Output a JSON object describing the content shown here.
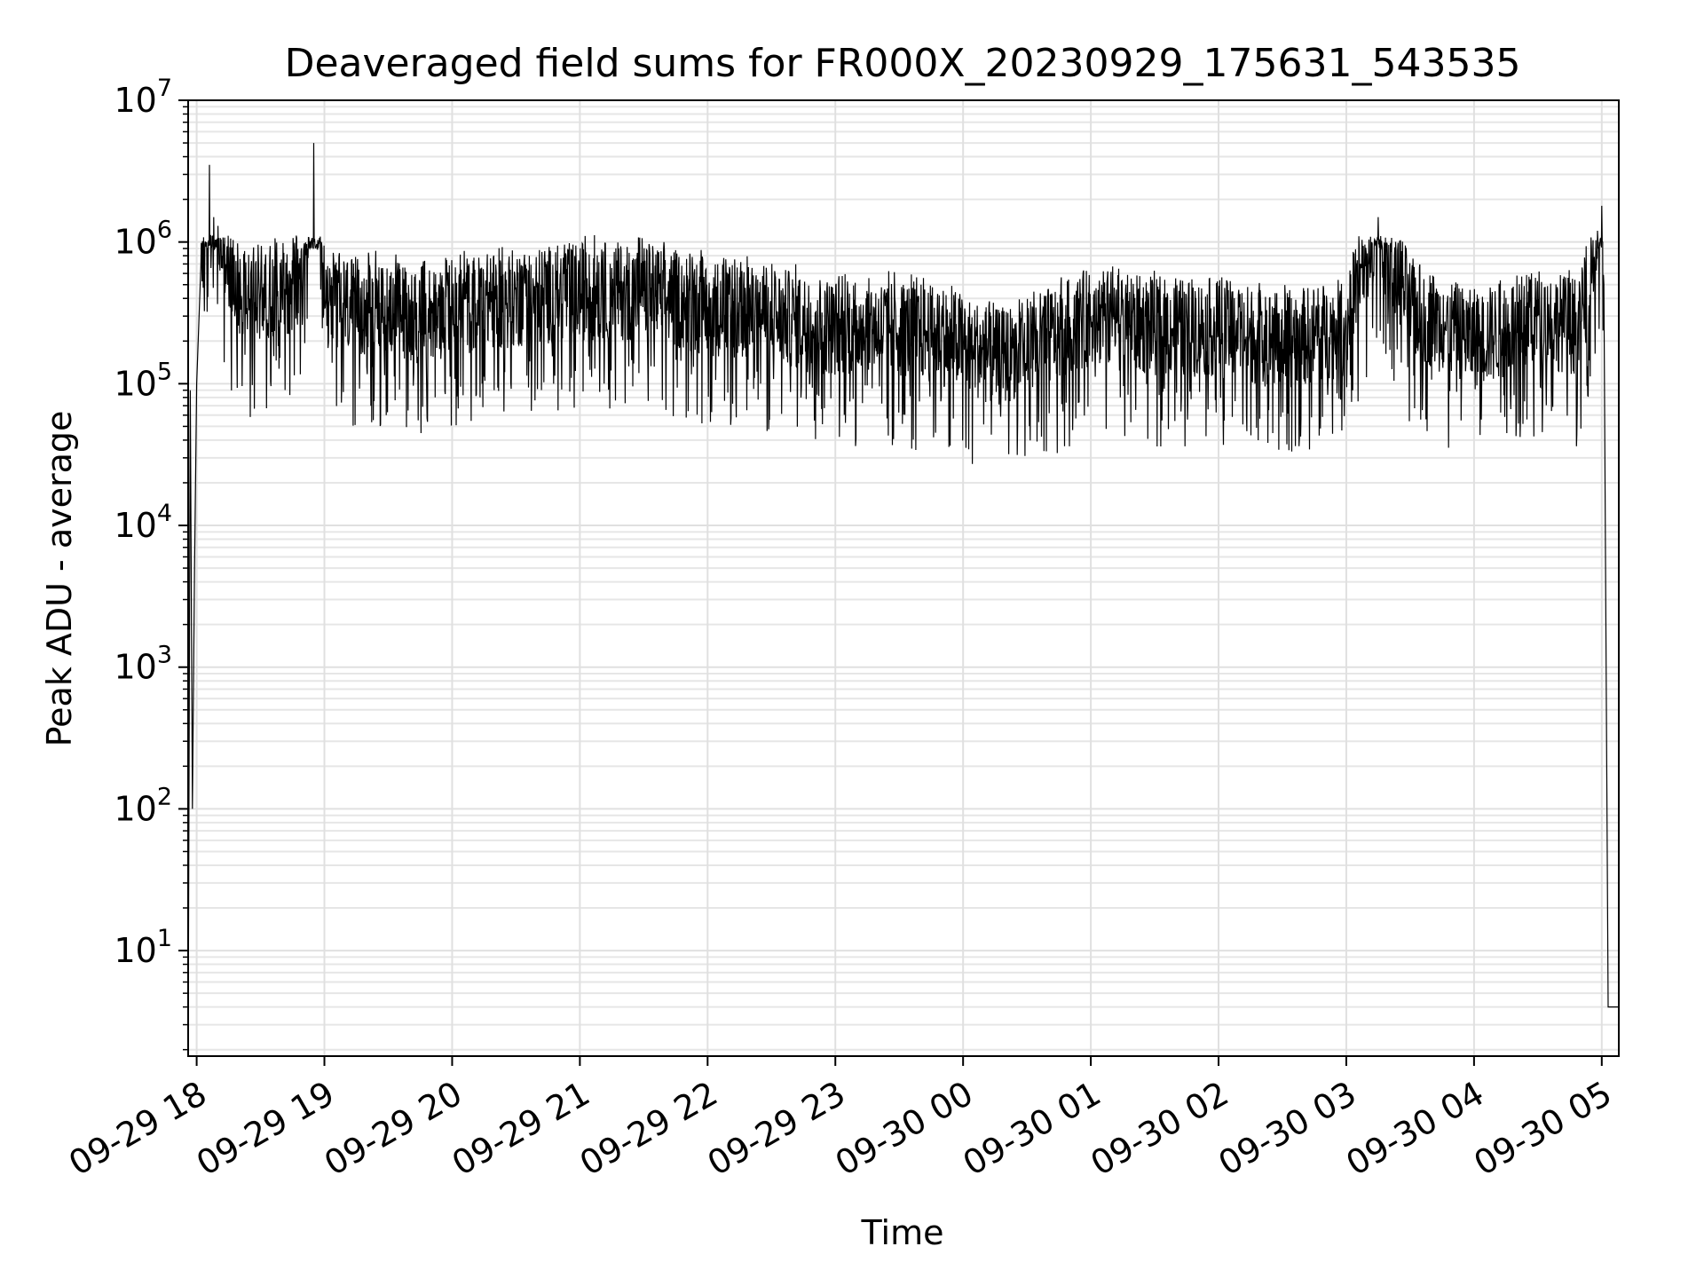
{
  "chart_data": {
    "type": "line",
    "title": "Deaveraged field sums for FR000X_20230929_175631_543535",
    "xlabel": "Time",
    "ylabel": "Peak ADU - average",
    "yscale": "log",
    "ylim": [
      1.8,
      10000000
    ],
    "xlim": [
      "2023-09-29 17:56",
      "2023-09-30 05:08"
    ],
    "grid": true,
    "x_ticks": [
      "09-29 18",
      "09-29 19",
      "09-29 20",
      "09-29 21",
      "09-29 22",
      "09-29 23",
      "09-30 00",
      "09-30 01",
      "09-30 02",
      "09-30 03",
      "09-30 04",
      "09-30 05"
    ],
    "y_ticks": [
      {
        "base": "10",
        "exp": "1",
        "value": 10
      },
      {
        "base": "10",
        "exp": "2",
        "value": 100
      },
      {
        "base": "10",
        "exp": "3",
        "value": 1000
      },
      {
        "base": "10",
        "exp": "4",
        "value": 10000
      },
      {
        "base": "10",
        "exp": "5",
        "value": 100000
      },
      {
        "base": "10",
        "exp": "6",
        "value": 1000000
      },
      {
        "base": "10",
        "exp": "7",
        "value": 10000000
      }
    ],
    "line_color": "#000000",
    "series": [
      {
        "x": [
          "2023-09-29 17:56",
          "2023-09-29 17:57",
          "2023-09-29 17:58",
          "2023-09-29 17:59",
          "2023-09-29 18:00",
          "2023-09-29 18:02",
          "2023-09-29 18:04",
          "2023-09-29 18:06",
          "2023-09-29 18:08",
          "2023-09-29 18:10",
          "2023-09-29 18:12",
          "2023-09-29 18:15",
          "2023-09-29 18:20",
          "2023-09-29 18:25",
          "2023-09-29 18:30",
          "2023-09-29 18:40",
          "2023-09-29 18:50",
          "2023-09-29 18:55",
          "2023-09-29 19:00",
          "2023-09-29 19:15",
          "2023-09-29 19:30",
          "2023-09-29 19:45",
          "2023-09-29 20:00",
          "2023-09-29 20:30",
          "2023-09-29 21:00",
          "2023-09-29 21:30",
          "2023-09-29 22:00",
          "2023-09-29 22:30",
          "2023-09-29 23:00",
          "2023-09-29 23:30",
          "2023-09-30 00:00",
          "2023-09-30 00:15",
          "2023-09-30 00:30",
          "2023-09-30 01:00",
          "2023-09-30 01:30",
          "2023-09-30 02:00",
          "2023-09-30 02:30",
          "2023-09-30 03:00",
          "2023-09-30 03:15",
          "2023-09-30 03:30",
          "2023-09-30 04:00",
          "2023-09-30 04:30",
          "2023-09-30 04:50",
          "2023-09-30 04:58",
          "2023-09-30 05:00",
          "2023-09-30 05:01",
          "2023-09-30 05:03",
          "2023-09-30 05:08"
        ],
        "y": [
          1.8,
          90000,
          100,
          5000,
          100000,
          700000,
          1000000,
          3500000,
          1500000,
          1300000,
          800000,
          600000,
          500000,
          400000,
          450000,
          500000,
          500000,
          5000000,
          400000,
          350000,
          350000,
          300000,
          350000,
          400000,
          450000,
          450000,
          350000,
          300000,
          250000,
          250000,
          200000,
          150000,
          180000,
          300000,
          250000,
          250000,
          200000,
          250000,
          1500000,
          350000,
          200000,
          300000,
          250000,
          1200000,
          1800000,
          500000,
          4,
          4
        ]
      }
    ]
  }
}
